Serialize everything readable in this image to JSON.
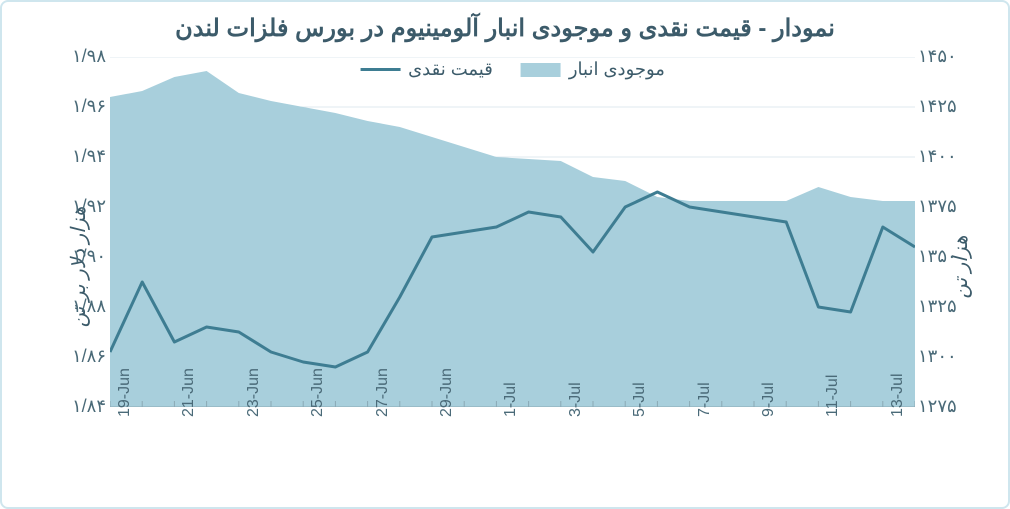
{
  "title": "نمودار - قیمت نقدی و موجودی انبار آلومینیوم در بورس فلزات لندن",
  "left_axis": {
    "label": "هزار دلار بر تن",
    "ticks": [
      "۱/۹۸",
      "۱/۹۶",
      "۱/۹۴",
      "۱/۹۲",
      "۱/۹۰",
      "۱/۸۸",
      "۱/۸۶",
      "۱/۸۴"
    ],
    "tick_values": [
      1.98,
      1.96,
      1.94,
      1.92,
      1.9,
      1.88,
      1.86,
      1.84
    ],
    "min": 1.84,
    "max": 1.98
  },
  "right_axis": {
    "label": "هزار تن",
    "ticks": [
      "۱۴۵۰",
      "۱۴۲۵",
      "۱۴۰۰",
      "۱۳۷۵",
      "۱۳۵۰",
      "۱۳۲۵",
      "۱۳۰۰",
      "۱۲۷۵"
    ],
    "tick_values": [
      1450,
      1425,
      1400,
      1375,
      1350,
      1325,
      1300,
      1275
    ],
    "min": 1275,
    "max": 1450
  },
  "x_axis": {
    "labels": [
      "19-Jun",
      "21-Jun",
      "23-Jun",
      "25-Jun",
      "27-Jun",
      "29-Jun",
      "1-Jul",
      "3-Jul",
      "5-Jul",
      "7-Jul",
      "9-Jul",
      "11-Jul",
      "13-Jul"
    ],
    "n_points": 26
  },
  "legend": {
    "line_label": "قیمت نقدی",
    "area_label": "موجودی انبار"
  },
  "colors": {
    "line": "#3e7d92",
    "area_fill": "#a8cfdc",
    "grid": "#dfeaef",
    "axis_text": "#4a6a78",
    "frame": "#cfe6ee",
    "background": "#ffffff",
    "tick_mark": "#8aa9b5"
  },
  "series": {
    "area_right_axis": [
      1430,
      1433,
      1440,
      1443,
      1432,
      1428,
      1425,
      1422,
      1418,
      1415,
      1410,
      1405,
      1400,
      1399,
      1398,
      1390,
      1388,
      1380,
      1378,
      1378,
      1378,
      1378,
      1385,
      1380,
      1378,
      1378
    ],
    "line_left_axis": [
      1.862,
      1.89,
      1.866,
      1.872,
      1.87,
      1.862,
      1.858,
      1.856,
      1.862,
      1.884,
      1.908,
      1.91,
      1.912,
      1.918,
      1.916,
      1.902,
      1.92,
      1.926,
      1.92,
      1.918,
      1.916,
      1.914,
      1.88,
      1.878,
      1.912,
      1.904
    ]
  },
  "style": {
    "line_width": 3,
    "title_fontsize": 24,
    "tick_fontsize": 18,
    "xtick_fontsize": 16,
    "legend_fontsize": 18
  }
}
